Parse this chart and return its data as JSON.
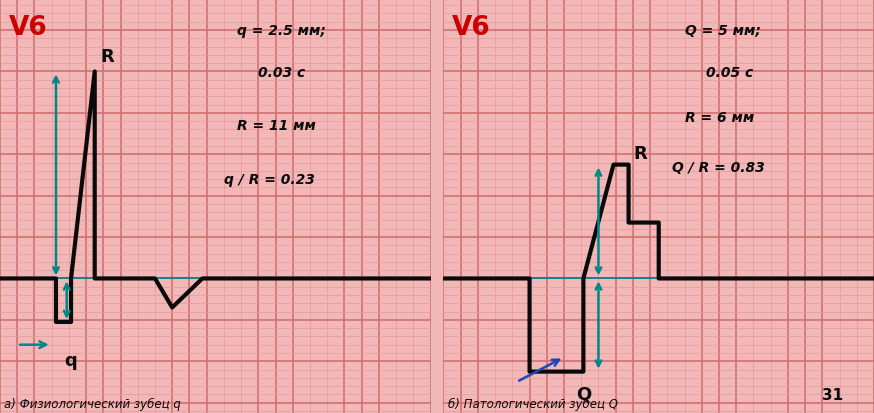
{
  "bg_color": "#f2b8b8",
  "grid_major_color": "#d07070",
  "grid_minor_color": "#e89898",
  "ecg_color": "#0a0a0a",
  "baseline_color": "#008888",
  "arrow_color_teal": "#008888",
  "arrow_color_blue": "#2244bb",
  "v6_color": "#cc0000",
  "text_color": "#0a0a0a",
  "page_number": "31",
  "label_a": "а) Физиологический зубец q",
  "label_b": "б) Патологический зубец Q",
  "ann_a": [
    "q = 2.5 мм;",
    "0.03 с",
    "R = 11 мм",
    "q / R = 0.23"
  ],
  "ann_b": [
    "Q = 5 мм;",
    "0.05 с",
    "R = 6 мм",
    "Q / R = 0.83"
  ]
}
